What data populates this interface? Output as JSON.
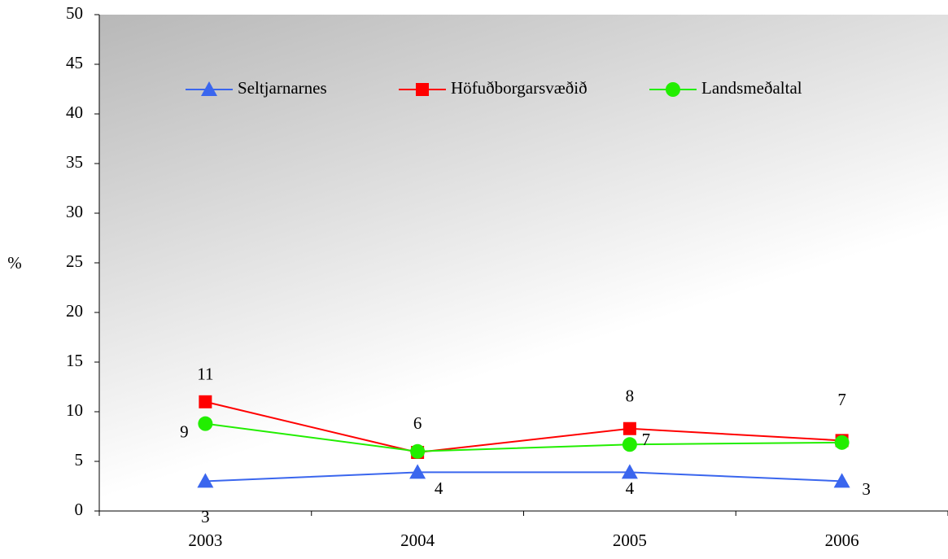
{
  "chart_data": {
    "type": "line",
    "y_label": "%",
    "categories": [
      "2003",
      "2004",
      "2005",
      "2006"
    ],
    "series": [
      {
        "name": "Seltjarnarnes",
        "color": "#3a66ee",
        "marker": "triangle",
        "values": [
          3,
          3.9,
          3.9,
          3
        ],
        "value_labels": [
          "3",
          "4",
          "4",
          "3"
        ]
      },
      {
        "name": "Höfuðborgarsvæðið",
        "color": "#ff0000",
        "marker": "square",
        "values": [
          11,
          5.9,
          8.3,
          7.1
        ],
        "value_labels": [
          "11",
          "6",
          "8",
          "7"
        ]
      },
      {
        "name": "Landsmeðaltal",
        "color": "#22ee00",
        "marker": "circle",
        "values": [
          8.8,
          6,
          6.7,
          6.9
        ],
        "value_labels": [
          "9",
          null,
          "7",
          null
        ]
      }
    ],
    "ylim": [
      0,
      50
    ],
    "yticks": [
      0,
      5,
      10,
      15,
      20,
      25,
      30,
      35,
      40,
      45,
      50
    ],
    "legend": "top"
  }
}
